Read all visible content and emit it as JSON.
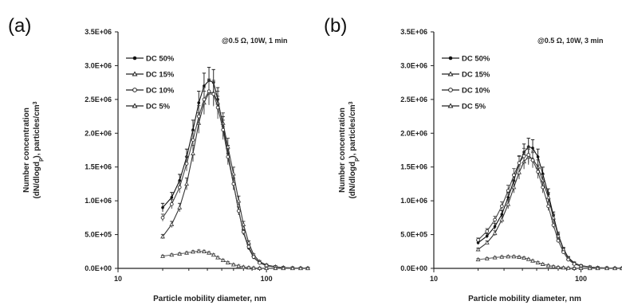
{
  "chart_data": [
    {
      "type": "line",
      "panel": "(a)",
      "condition": "@0.5 Ω, 10W, 1 min",
      "xlabel": "Particle mobility diameter, nm",
      "ylabel_line1": "Number concentration",
      "ylabel_line2": "(dN/dlogd",
      "ylabel_sub": "p",
      "ylabel_line3": "), particles/cm",
      "ylabel_sup": "3",
      "xscale": "log",
      "xlim": [
        10,
        190
      ],
      "ylim": [
        0,
        3500000
      ],
      "xticks": [
        {
          "value": 10,
          "label": "10"
        },
        {
          "value": 100,
          "label": "100"
        }
      ],
      "yticks": [
        {
          "value": 0,
          "label": "0.0E+00"
        },
        {
          "value": 500000,
          "label": "5.0E+05"
        },
        {
          "value": 1000000,
          "label": "1.0E+06"
        },
        {
          "value": 1500000,
          "label": "1.5E+06"
        },
        {
          "value": 2000000,
          "label": "2.0E+06"
        },
        {
          "value": 2500000,
          "label": "2.5E+06"
        },
        {
          "value": 3000000,
          "label": "3.0E+06"
        },
        {
          "value": 3500000,
          "label": "3.5E+06"
        }
      ],
      "legend_position": "top-left",
      "x": [
        20,
        23,
        26,
        29,
        32,
        35,
        38,
        41,
        44,
        47,
        51,
        55,
        60,
        65,
        70,
        76,
        82,
        90,
        100,
        115,
        130,
        150,
        170,
        190
      ],
      "series": [
        {
          "name": "DC 50%",
          "marker": "filled-circle",
          "values": [
            900000,
            1050000,
            1300000,
            1650000,
            2050000,
            2450000,
            2700000,
            2780000,
            2750000,
            2500000,
            2100000,
            1700000,
            1250000,
            850000,
            530000,
            300000,
            160000,
            80000,
            40000,
            20000,
            10000,
            5000,
            3000,
            2000
          ]
        },
        {
          "name": "DC 15%",
          "marker": "open-triangle",
          "values": [
            470000,
            650000,
            900000,
            1250000,
            1700000,
            2150000,
            2450000,
            2600000,
            2600000,
            2450000,
            2150000,
            1800000,
            1400000,
            1000000,
            650000,
            380000,
            200000,
            100000,
            50000,
            25000,
            12000,
            6000,
            3000,
            2000
          ]
        },
        {
          "name": "DC 10%",
          "marker": "open-circle",
          "values": [
            750000,
            950000,
            1200000,
            1550000,
            1900000,
            2250000,
            2500000,
            2620000,
            2580000,
            2380000,
            2050000,
            1650000,
            1250000,
            850000,
            540000,
            320000,
            170000,
            80000,
            40000,
            20000,
            10000,
            5000,
            3000,
            2000
          ]
        },
        {
          "name": "DC 5%",
          "marker": "open-triangle",
          "values": [
            180000,
            200000,
            215000,
            230000,
            245000,
            255000,
            250000,
            230000,
            200000,
            160000,
            120000,
            85000,
            55000,
            35000,
            20000,
            12000,
            7000,
            4000,
            2500,
            1500,
            1000,
            800,
            600,
            500
          ]
        }
      ]
    },
    {
      "type": "line",
      "panel": "(b)",
      "condition": "@0.5 Ω, 10W, 3 min",
      "xlabel": "Particle mobility diameter, nm",
      "ylabel_line1": "Number concentration",
      "ylabel_line2": "(dN/dlogd",
      "ylabel_sub": "p",
      "ylabel_line3": "), particles/cm",
      "ylabel_sup": "3",
      "xscale": "log",
      "xlim": [
        10,
        190
      ],
      "ylim": [
        0,
        3500000
      ],
      "xticks": [
        {
          "value": 10,
          "label": "10"
        },
        {
          "value": 100,
          "label": "100"
        }
      ],
      "yticks": [
        {
          "value": 0,
          "label": "0.0E+00"
        },
        {
          "value": 500000,
          "label": "5.0E+05"
        },
        {
          "value": 1000000,
          "label": "1.0E+06"
        },
        {
          "value": 1500000,
          "label": "1.5E+06"
        },
        {
          "value": 2000000,
          "label": "2.0E+06"
        },
        {
          "value": 2500000,
          "label": "2.5E+06"
        },
        {
          "value": 3000000,
          "label": "3.0E+06"
        },
        {
          "value": 3500000,
          "label": "3.5E+06"
        }
      ],
      "legend_position": "top-left",
      "x": [
        20,
        23,
        26,
        29,
        32,
        35,
        38,
        41,
        44,
        47,
        51,
        55,
        60,
        65,
        70,
        76,
        82,
        90,
        100,
        115,
        130,
        150,
        170,
        190
      ],
      "series": [
        {
          "name": "DC 50%",
          "marker": "filled-circle",
          "values": [
            380000,
            480000,
            620000,
            800000,
            1050000,
            1300000,
            1550000,
            1720000,
            1800000,
            1780000,
            1650000,
            1400000,
            1100000,
            780000,
            500000,
            290000,
            160000,
            80000,
            40000,
            20000,
            10000,
            5000,
            3000,
            2000
          ]
        },
        {
          "name": "DC 15%",
          "marker": "open-triangle",
          "values": [
            280000,
            380000,
            520000,
            720000,
            950000,
            1200000,
            1420000,
            1580000,
            1650000,
            1620000,
            1500000,
            1300000,
            1050000,
            750000,
            480000,
            280000,
            150000,
            75000,
            38000,
            18000,
            9000,
            5000,
            3000,
            2000
          ]
        },
        {
          "name": "DC 10%",
          "marker": "open-circle",
          "values": [
            420000,
            550000,
            720000,
            920000,
            1150000,
            1380000,
            1560000,
            1660000,
            1680000,
            1600000,
            1430000,
            1200000,
            920000,
            640000,
            410000,
            240000,
            130000,
            65000,
            33000,
            16000,
            8000,
            4000,
            2500,
            1500
          ]
        },
        {
          "name": "DC 5%",
          "marker": "open-triangle",
          "values": [
            130000,
            145000,
            160000,
            170000,
            175000,
            175000,
            168000,
            155000,
            135000,
            112000,
            85000,
            62000,
            42000,
            27000,
            16000,
            9500,
            5500,
            3200,
            2000,
            1200,
            800,
            600,
            500,
            400
          ]
        }
      ]
    }
  ]
}
